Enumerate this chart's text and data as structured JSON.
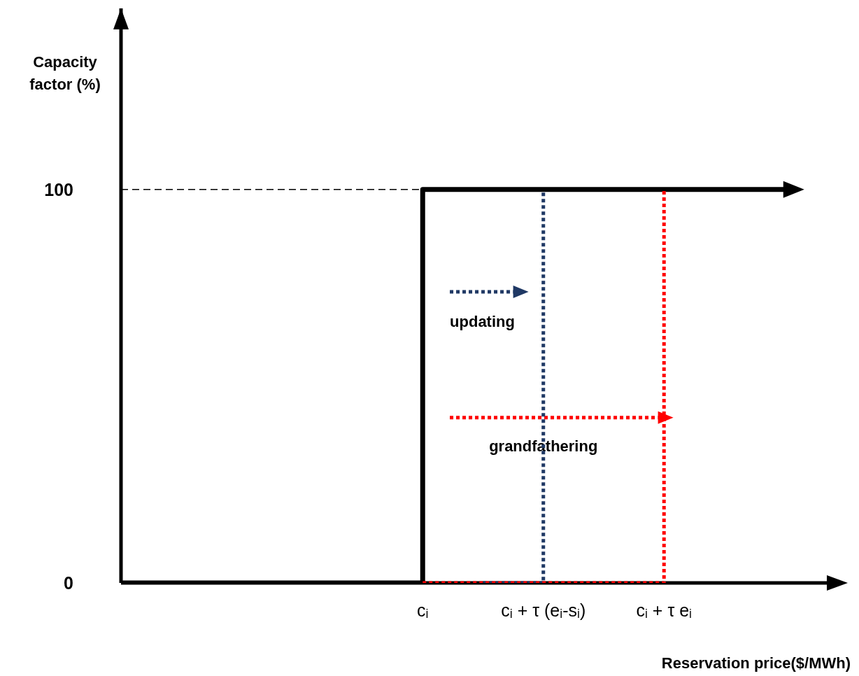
{
  "chart_data": {
    "type": "step",
    "xlabel": "Reservation price($/MWh)",
    "ylabel": "Capacity factor (%)",
    "categories": [
      null,
      null,
      null,
      null,
      null,
      "cᵢ",
      null,
      "cᵢ + τ (eᵢ-sᵢ)",
      null,
      "cᵢ + τ eᵢ",
      null,
      null,
      null
    ],
    "series": [
      {
        "color": "#000000",
        "line_style": "solid",
        "values": [
          0,
          0,
          0,
          0,
          0,
          100,
          100,
          100,
          100,
          100,
          100,
          100,
          null
        ]
      },
      {
        "color": "#1f3864",
        "line_style": "dotted",
        "values": [
          null,
          null,
          null,
          null,
          null,
          null,
          0,
          100,
          null,
          null,
          null,
          null,
          null
        ]
      },
      {
        "color": "#ff0000",
        "line_style": "dotted",
        "values": [
          null,
          null,
          null,
          null,
          null,
          0,
          0,
          0,
          0,
          100,
          null,
          null,
          null
        ]
      }
    ],
    "ylim": [
      0,
      146
    ],
    "yticks": [
      0,
      100
    ],
    "ref_lines": [
      {
        "axis": "y",
        "value": 100,
        "color": "#000000",
        "line_style": "dashed"
      }
    ],
    "annotations": [
      "updating",
      "grandfathering"
    ],
    "grid": false,
    "legend": false,
    "marker": "none"
  }
}
